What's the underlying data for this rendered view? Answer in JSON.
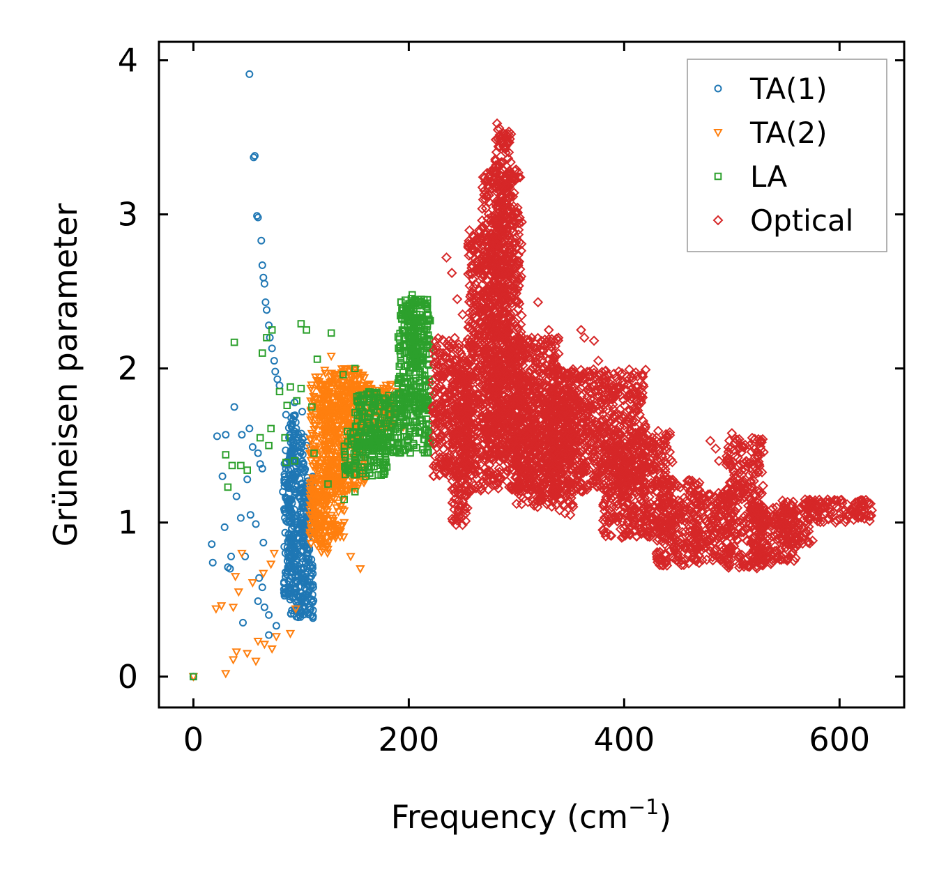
{
  "chart_data": {
    "type": "scatter",
    "title": "",
    "xlabel": "Frequency (cm",
    "xlabel_sup": "−1",
    "xlabel_close": ")",
    "ylabel": "Grüneisen parameter",
    "xlim": [
      -32,
      660
    ],
    "ylim": [
      -0.2,
      4.12
    ],
    "xticks": [
      0,
      200,
      400,
      600
    ],
    "yticks": [
      0,
      1,
      2,
      3,
      4
    ],
    "xtick_labels": [
      "0",
      "200",
      "400",
      "600"
    ],
    "ytick_labels": [
      "0",
      "1",
      "2",
      "3",
      "4"
    ],
    "grid": false,
    "legend_position": "top-right",
    "series": [
      {
        "name": "TA(1)",
        "marker": "circle",
        "color": "#1f77b4",
        "points": [
          [
            0,
            0
          ],
          [
            52,
            3.91
          ],
          [
            56,
            3.37
          ],
          [
            57,
            3.38
          ],
          [
            59,
            2.99
          ],
          [
            60,
            2.98
          ],
          [
            63,
            2.83
          ],
          [
            64,
            2.67
          ],
          [
            65,
            2.59
          ],
          [
            66,
            2.55
          ],
          [
            67,
            2.43
          ],
          [
            68,
            2.38
          ],
          [
            70,
            2.28
          ],
          [
            71,
            2.2
          ],
          [
            73,
            2.13
          ],
          [
            75,
            2.05
          ],
          [
            76,
            1.98
          ],
          [
            78,
            1.93
          ],
          [
            80,
            1.89
          ],
          [
            38,
            1.75
          ],
          [
            22,
            1.56
          ],
          [
            30,
            1.57
          ],
          [
            45,
            1.57
          ],
          [
            52,
            1.61
          ],
          [
            55,
            1.49
          ],
          [
            60,
            1.45
          ],
          [
            62,
            1.38
          ],
          [
            64,
            1.35
          ],
          [
            27,
            1.3
          ],
          [
            50,
            1.28
          ],
          [
            40,
            1.17
          ],
          [
            44,
            1.03
          ],
          [
            53,
            1.05
          ],
          [
            58,
            0.99
          ],
          [
            29,
            0.97
          ],
          [
            65,
            0.87
          ],
          [
            17,
            0.86
          ],
          [
            35,
            0.78
          ],
          [
            18,
            0.74
          ],
          [
            32,
            0.71
          ],
          [
            34,
            0.7
          ],
          [
            48,
            0.78
          ],
          [
            61,
            0.64
          ],
          [
            64,
            0.58
          ],
          [
            60,
            0.49
          ],
          [
            66,
            0.45
          ],
          [
            70,
            0.4
          ],
          [
            46,
            0.35
          ],
          [
            70,
            0.27
          ],
          [
            77,
            0.33
          ],
          [
            85,
            0.55
          ],
          [
            88,
            1.1
          ],
          [
            90,
            0.85
          ],
          [
            92,
            1.4
          ],
          [
            95,
            1.65
          ],
          [
            97,
            0.7
          ],
          [
            99,
            0.4
          ],
          [
            100,
            1.25
          ],
          [
            102,
            0.95
          ],
          [
            103,
            0.6
          ],
          [
            105,
            1.5
          ],
          [
            106,
            0.8
          ],
          [
            107,
            1.05
          ],
          [
            108,
            0.45
          ],
          [
            110,
            0.7
          ],
          [
            111,
            0.38
          ],
          [
            86,
            1.7
          ],
          [
            83,
            1.2
          ],
          [
            94,
            1.78
          ],
          [
            101,
            1.72
          ]
        ],
        "cluster": [
          [
            88,
            96,
            0.4,
            1.7
          ],
          [
            94,
            104,
            0.38,
            1.6
          ],
          [
            100,
            112,
            0.38,
            1.3
          ],
          [
            84,
            92,
            0.5,
            1.5
          ]
        ]
      },
      {
        "name": "TA(2)",
        "marker": "triangle-down",
        "color": "#ff7f0e",
        "points": [
          [
            0,
            0
          ],
          [
            30,
            0.02
          ],
          [
            37,
            0.11
          ],
          [
            40,
            0.16
          ],
          [
            50,
            0.15
          ],
          [
            58,
            0.1
          ],
          [
            60,
            0.23
          ],
          [
            66,
            0.21
          ],
          [
            73,
            0.18
          ],
          [
            77,
            0.26
          ],
          [
            21,
            0.44
          ],
          [
            26,
            0.46
          ],
          [
            37,
            0.45
          ],
          [
            42,
            0.55
          ],
          [
            55,
            0.61
          ],
          [
            65,
            0.67
          ],
          [
            72,
            0.73
          ],
          [
            75,
            0.8
          ],
          [
            90,
            0.28
          ],
          [
            95,
            0.44
          ],
          [
            39,
            0.65
          ],
          [
            45,
            0.8
          ],
          [
            128,
            2.08
          ],
          [
            133,
            1.93
          ],
          [
            138,
            1.6
          ],
          [
            142,
            1.7
          ],
          [
            150,
            1.8
          ],
          [
            158,
            1.82
          ],
          [
            165,
            1.65
          ],
          [
            172,
            1.73
          ],
          [
            180,
            1.82
          ],
          [
            190,
            1.85
          ],
          [
            195,
            1.62
          ],
          [
            110,
            1.2
          ],
          [
            115,
            1.4
          ],
          [
            120,
            0.9
          ],
          [
            125,
            1.55
          ],
          [
            118,
            0.95
          ],
          [
            132,
            0.9
          ],
          [
            140,
            1.0
          ],
          [
            146,
            0.78
          ],
          [
            155,
            0.7
          ]
        ],
        "cluster": [
          [
            108,
            140,
            0.9,
            1.95
          ],
          [
            120,
            160,
            1.2,
            2.0
          ],
          [
            140,
            185,
            1.6,
            1.9
          ],
          [
            108,
            125,
            0.8,
            1.3
          ]
        ]
      },
      {
        "name": "LA",
        "marker": "square",
        "color": "#2ca02c",
        "points": [
          [
            0,
            0
          ],
          [
            38,
            2.17
          ],
          [
            64,
            2.1
          ],
          [
            73,
            2.25
          ],
          [
            68,
            2.2
          ],
          [
            87,
            1.76
          ],
          [
            96,
            1.79
          ],
          [
            100,
            2.29
          ],
          [
            105,
            2.25
          ],
          [
            115,
            2.06
          ],
          [
            128,
            2.23
          ],
          [
            139,
            1.96
          ],
          [
            150,
            2.0
          ],
          [
            30,
            1.44
          ],
          [
            36,
            1.37
          ],
          [
            32,
            1.23
          ],
          [
            44,
            1.37
          ],
          [
            50,
            1.34
          ],
          [
            62,
            1.55
          ],
          [
            70,
            1.5
          ],
          [
            72,
            1.61
          ],
          [
            80,
            1.85
          ],
          [
            85,
            1.55
          ],
          [
            86,
            1.39
          ],
          [
            90,
            1.88
          ],
          [
            94,
            1.4
          ],
          [
            100,
            1.87
          ],
          [
            110,
            1.75
          ],
          [
            112,
            1.45
          ],
          [
            125,
            1.25
          ],
          [
            140,
            1.15
          ],
          [
            150,
            1.2
          ],
          [
            160,
            1.3
          ]
        ],
        "cluster": [
          [
            150,
            220,
            1.45,
            1.85
          ],
          [
            190,
            220,
            1.7,
            2.45
          ],
          [
            200,
            212,
            2.0,
            2.48
          ],
          [
            140,
            180,
            1.3,
            1.6
          ]
        ]
      },
      {
        "name": "Optical",
        "marker": "diamond",
        "color": "#d62728",
        "points": [
          [
            235,
            2.72
          ],
          [
            240,
            2.62
          ],
          [
            245,
            2.45
          ],
          [
            250,
            2.35
          ],
          [
            282,
            3.59
          ],
          [
            284,
            3.56
          ],
          [
            286,
            3.5
          ],
          [
            288,
            3.44
          ],
          [
            290,
            3.4
          ],
          [
            300,
            3.0
          ],
          [
            302,
            2.9
          ],
          [
            305,
            2.95
          ],
          [
            320,
            2.43
          ],
          [
            330,
            2.25
          ],
          [
            352,
            1.85
          ],
          [
            360,
            2.25
          ],
          [
            363,
            2.2
          ],
          [
            372,
            2.18
          ],
          [
            376,
            2.05
          ],
          [
            382,
            1.8
          ],
          [
            388,
            1.8
          ],
          [
            395,
            1.7
          ],
          [
            400,
            1.63
          ],
          [
            410,
            1.62
          ],
          [
            420,
            1.5
          ],
          [
            430,
            1.35
          ],
          [
            440,
            1.28
          ],
          [
            345,
            1.06
          ],
          [
            340,
            1.08
          ],
          [
            350,
            1.05
          ],
          [
            385,
            1.05
          ],
          [
            395,
            1.03
          ],
          [
            402,
            1.05
          ],
          [
            372,
            1.4
          ],
          [
            372,
            1.3
          ],
          [
            392,
            1.44
          ],
          [
            398,
            1.44
          ],
          [
            316,
            1.8
          ],
          [
            317,
            1.7
          ],
          [
            334,
            1.2
          ],
          [
            338,
            1.18
          ],
          [
            480,
            1.53
          ],
          [
            485,
            1.48
          ],
          [
            488,
            1.4
          ],
          [
            500,
            1.58
          ],
          [
            568,
            1.15
          ],
          [
            590,
            1.13
          ],
          [
            605,
            1.08
          ],
          [
            620,
            1.04
          ],
          [
            628,
            1.01
          ]
        ],
        "cluster": [
          [
            222,
            260,
            1.3,
            2.2
          ],
          [
            240,
            255,
            0.98,
            2.0
          ],
          [
            255,
            285,
            1.2,
            2.9
          ],
          [
            268,
            305,
            1.4,
            3.3
          ],
          [
            280,
            295,
            1.6,
            3.55
          ],
          [
            290,
            340,
            1.2,
            2.2
          ],
          [
            300,
            355,
            1.1,
            1.9
          ],
          [
            330,
            420,
            1.2,
            2.0
          ],
          [
            380,
            445,
            0.9,
            1.6
          ],
          [
            430,
            470,
            0.72,
            1.28
          ],
          [
            465,
            500,
            0.75,
            1.2
          ],
          [
            495,
            530,
            0.7,
            1.55
          ],
          [
            520,
            560,
            0.72,
            1.1
          ],
          [
            545,
            575,
            0.85,
            1.15
          ],
          [
            570,
            630,
            1.0,
            1.15
          ]
        ]
      }
    ]
  }
}
